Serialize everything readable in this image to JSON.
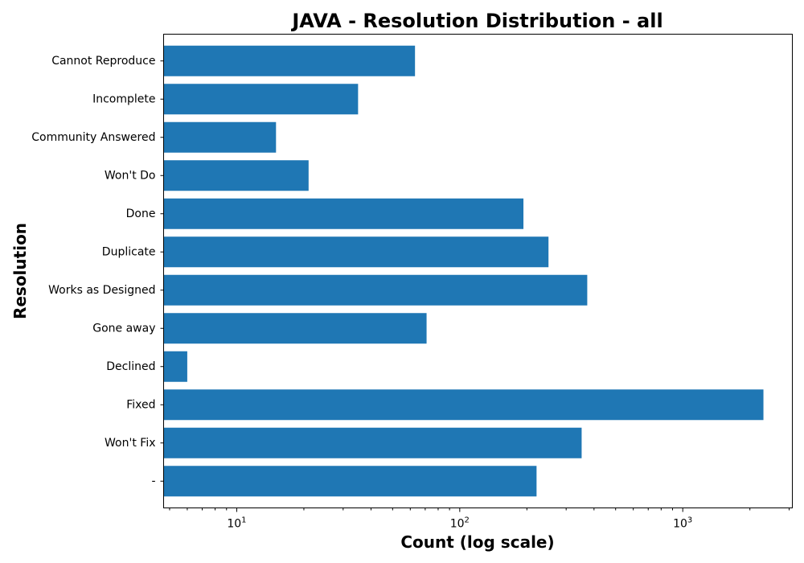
{
  "chart_data": {
    "type": "bar",
    "orientation": "horizontal",
    "title": "JAVA - Resolution Distribution - all",
    "xlabel": "Count (log scale)",
    "ylabel": "Resolution",
    "x_scale": "log",
    "xlim": [
      4.7,
      3100
    ],
    "x_ticks": [
      {
        "base": "10",
        "exponent": "1",
        "value": 10
      },
      {
        "base": "10",
        "exponent": "2",
        "value": 100
      },
      {
        "base": "10",
        "exponent": "3",
        "value": 1000
      }
    ],
    "categories": [
      "Cannot Reproduce",
      "Incomplete",
      "Community Answered",
      "Won't Do",
      "Done",
      "Duplicate",
      "Works as Designed",
      "Gone away",
      "Declined",
      "Fixed",
      "Won't Fix",
      "-"
    ],
    "values": [
      63,
      35,
      15,
      21,
      193,
      250,
      373,
      71,
      6,
      2300,
      352,
      221
    ],
    "bar_color": "#1f77b4",
    "grid": false,
    "legend": "none"
  }
}
